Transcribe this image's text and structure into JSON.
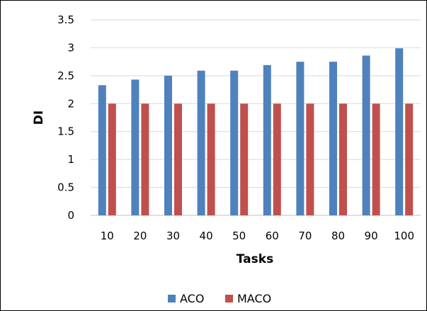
{
  "chart_data": {
    "type": "bar",
    "categories": [
      "10",
      "20",
      "30",
      "40",
      "50",
      "60",
      "70",
      "80",
      "90",
      "100"
    ],
    "series": [
      {
        "name": "ACO",
        "color": "#4F81BD",
        "values": [
          2.33,
          2.43,
          2.5,
          2.59,
          2.59,
          2.69,
          2.75,
          2.75,
          2.86,
          2.99
        ]
      },
      {
        "name": "MACO",
        "color": "#C0504D",
        "values": [
          2,
          2,
          2,
          2,
          2,
          2,
          2,
          2,
          2,
          2
        ]
      }
    ],
    "xlabel": "Tasks",
    "ylabel": "DI",
    "ylim": [
      0,
      3.5
    ],
    "yticks": [
      "0",
      "0.5",
      "1",
      "1.5",
      "2",
      "2.5",
      "3",
      "3.5"
    ],
    "grid": true,
    "gridline_color": "#D9D9D9",
    "legend_position": "bottom"
  }
}
